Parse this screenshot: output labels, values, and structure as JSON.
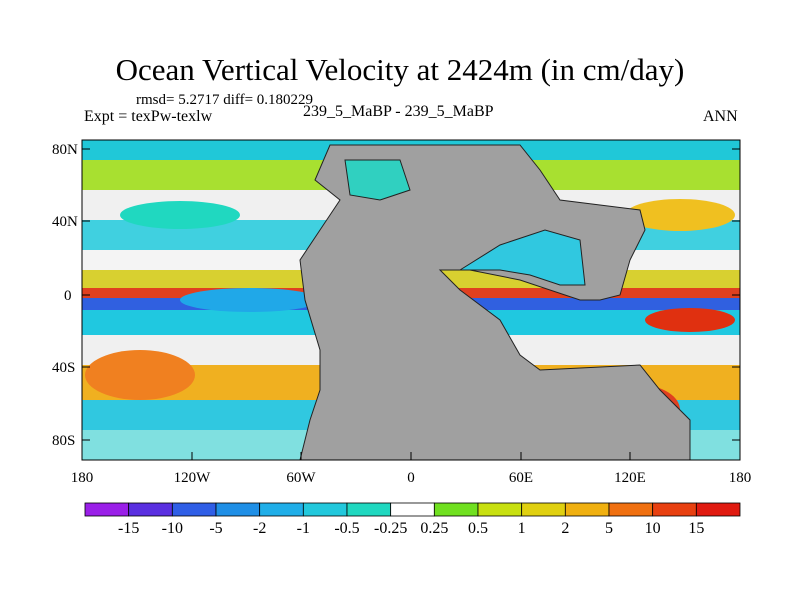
{
  "title": "Ocean Vertical Velocity at 2424m (in cm/day)",
  "stats": "rmsd= 5.2717  diff= 0.180229",
  "experiment": "Expt = texPw-texlw",
  "center_label": "239_5_MaBP - 239_5_MaBP",
  "season": "ANN",
  "axes": {
    "y_ticks": [
      "80N",
      "40N",
      "0",
      "40S",
      "80S"
    ],
    "x_ticks": [
      "180",
      "120W",
      "60W",
      "0",
      "60E",
      "120E",
      "180"
    ]
  },
  "colorbar": {
    "labels": [
      "-15",
      "-10",
      "-5",
      "-2",
      "-1",
      "-0.5",
      "-0.25",
      "0.25",
      "0.5",
      "1",
      "2",
      "5",
      "10",
      "15"
    ],
    "colors": [
      "#9a1fe8",
      "#5a2fe0",
      "#2f5ee6",
      "#1f8fe6",
      "#20aee8",
      "#22c8dc",
      "#20d8c0",
      "#ffffff",
      "#70e020",
      "#c8e010",
      "#e0d010",
      "#f0b010",
      "#f07010",
      "#e84010",
      "#e01a10"
    ]
  },
  "land_color": "#a0a0a0"
}
